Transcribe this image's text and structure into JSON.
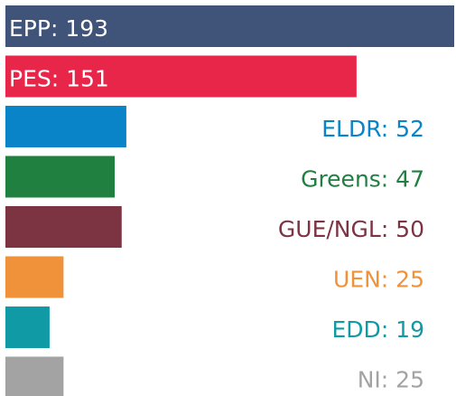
{
  "chart_data": {
    "type": "bar",
    "orientation": "horizontal",
    "values": [
      193,
      151,
      52,
      47,
      50,
      25,
      19,
      25
    ],
    "value_labels": [
      "EPP: 193",
      "PES: 151",
      "ELDR: 52",
      "Greens: 47",
      "GUE/NGL: 50",
      "UEN: 25",
      "EDD: 19",
      "NI: 25"
    ],
    "colors": [
      "#3f5478",
      "#e8264a",
      "#0a84c8",
      "#1f8040",
      "#7d3442",
      "#f0923a",
      "#109aa5",
      "#a3a3a3"
    ]
  }
}
